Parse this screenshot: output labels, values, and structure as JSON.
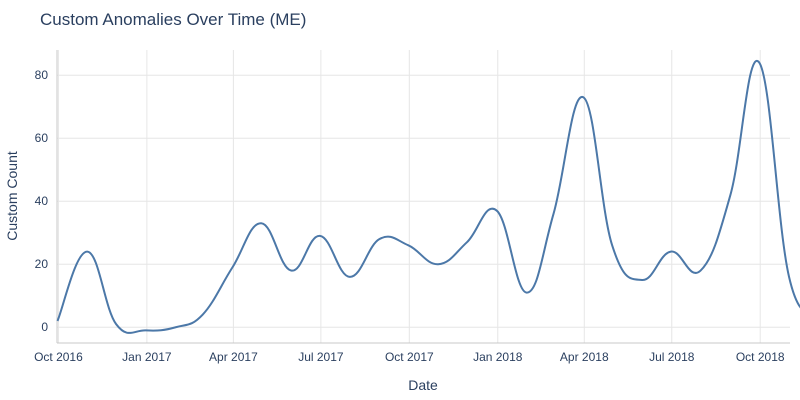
{
  "chart_data": {
    "type": "line",
    "title": "Custom Anomalies Over Time (ME)",
    "xlabel": "Date",
    "ylabel": "Custom Count",
    "ylim": [
      -5,
      88
    ],
    "xlim": [
      "2016-10-01",
      "2018-11-01"
    ],
    "grid": true,
    "line_color": "#4c78a8",
    "x_ticks": [
      {
        "date": "2016-10-01",
        "label": "Oct 2016"
      },
      {
        "date": "2017-01-01",
        "label": "Jan 2017"
      },
      {
        "date": "2017-04-01",
        "label": "Apr 2017"
      },
      {
        "date": "2017-07-01",
        "label": "Jul 2017"
      },
      {
        "date": "2017-10-01",
        "label": "Oct 2017"
      },
      {
        "date": "2018-01-01",
        "label": "Jan 2018"
      },
      {
        "date": "2018-04-01",
        "label": "Apr 2018"
      },
      {
        "date": "2018-07-01",
        "label": "Jul 2018"
      },
      {
        "date": "2018-10-01",
        "label": "Oct 2018"
      }
    ],
    "y_ticks": [
      0,
      20,
      40,
      60,
      80
    ],
    "series": [
      {
        "x": [
          "2016-09-30",
          "2016-10-31",
          "2016-11-30",
          "2016-12-31",
          "2017-01-31",
          "2017-02-28",
          "2017-03-31",
          "2017-04-30",
          "2017-05-31",
          "2017-06-30",
          "2017-07-31",
          "2017-08-31",
          "2017-09-30",
          "2017-10-31",
          "2017-11-30",
          "2017-12-31",
          "2018-01-31",
          "2018-02-28",
          "2018-03-31",
          "2018-04-30",
          "2018-05-31",
          "2018-06-30",
          "2018-07-31",
          "2018-08-31",
          "2018-09-30",
          "2018-10-31",
          "2018-11-30"
        ],
        "values": [
          2,
          24,
          1,
          -1,
          0,
          4,
          19,
          33,
          18,
          29,
          16,
          28,
          26,
          20,
          27,
          37,
          11,
          36,
          73,
          26,
          15,
          24,
          18,
          42,
          84,
          16,
          4
        ]
      }
    ]
  }
}
